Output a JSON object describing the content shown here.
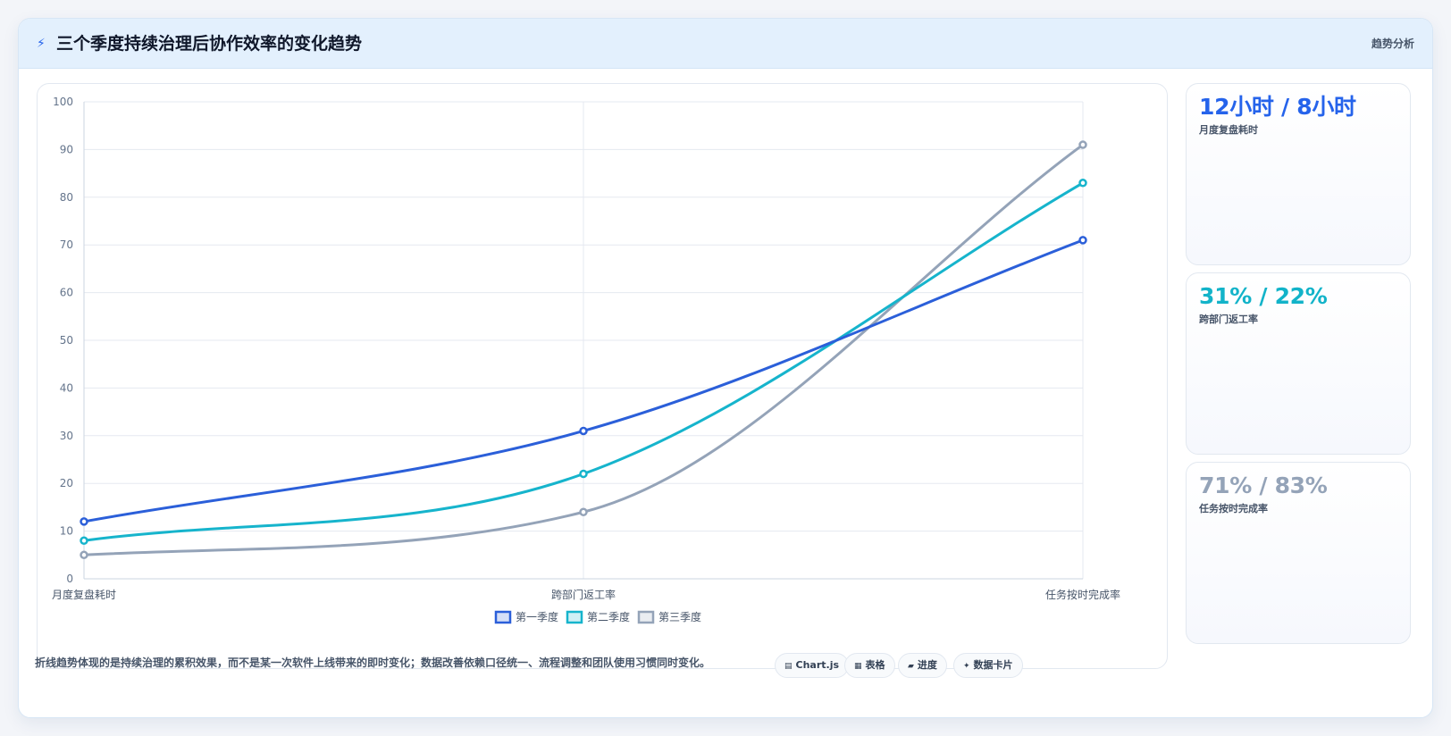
{
  "header": {
    "icon": "lightning-icon",
    "title": "三个季度持续治理后协作效率的变化趋势",
    "tag": "趋势分析"
  },
  "chart_data": {
    "type": "line",
    "title": "",
    "xlabel": "",
    "ylabel": "",
    "categories": [
      "月度复盘耗时",
      "跨部门返工率",
      "任务按时完成率"
    ],
    "series": [
      {
        "name": "第一季度",
        "values": [
          12,
          31,
          71
        ],
        "color": "#2b5fd9"
      },
      {
        "name": "第二季度",
        "values": [
          8,
          22,
          83
        ],
        "color": "#16b4cc"
      },
      {
        "name": "第三季度",
        "values": [
          5,
          14,
          91
        ],
        "color": "#94a3b8"
      }
    ],
    "ylim": [
      0,
      100
    ],
    "yticks": [
      0,
      10,
      20,
      30,
      40,
      50,
      60,
      70,
      80,
      90,
      100
    ],
    "grid": true,
    "legend": "bottom",
    "curve": "smooth"
  },
  "stats": [
    {
      "value": "12小时 / 8小时",
      "label": "月度复盘耗时",
      "color": "#2563eb"
    },
    {
      "value": "31% / 22%",
      "label": "跨部门返工率",
      "color": "#12b3c9"
    },
    {
      "value": "71% / 83%",
      "label": "任务按时完成率",
      "color": "#94a3b8"
    }
  ],
  "footer": {
    "note": "折线趋势体现的是持续治理的累积效果，而不是某一次软件上线带来的即时变化；数据改善依赖口径统一、流程调整和团队使用习惯同时变化。",
    "pills": [
      {
        "icon": "chart-icon",
        "glyph": "▤",
        "label": "Chart.js"
      },
      {
        "icon": "table-icon",
        "glyph": "▦",
        "label": "表格"
      },
      {
        "icon": "progress-icon",
        "glyph": "▰",
        "label": "进度"
      },
      {
        "icon": "sparkle-icon",
        "glyph": "✦",
        "label": "数据卡片"
      }
    ]
  }
}
